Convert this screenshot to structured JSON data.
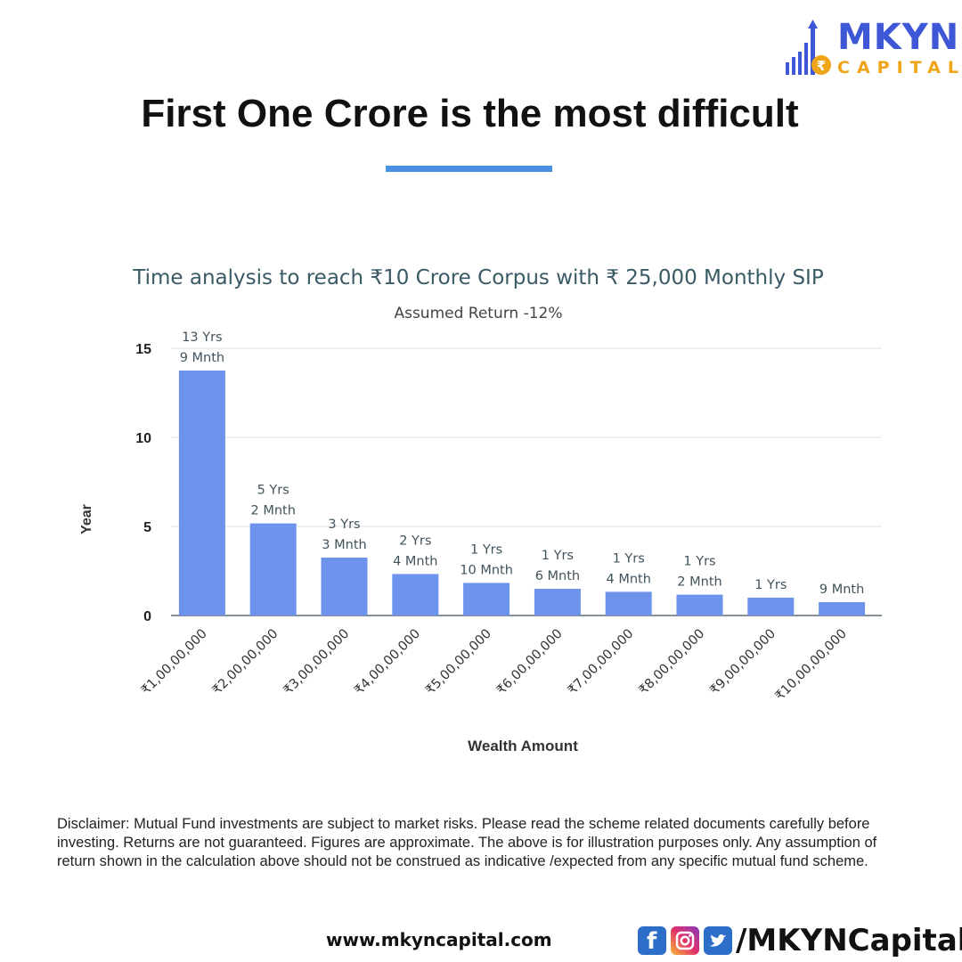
{
  "brand": {
    "name": "MKYN",
    "sub": "CAPITAL",
    "colors": {
      "primary": "#3d57d6",
      "accent": "#f0a418"
    },
    "icon": "rupee-growth-icon"
  },
  "headline": "First One Crore is the most difficult",
  "chart_data": {
    "type": "bar",
    "title": "Time analysis to reach ₹10 Crore Corpus with ₹ 25,000 Monthly SIP",
    "subtitle": "Assumed Return -12%",
    "xlabel": "Wealth Amount",
    "ylabel": "Year",
    "ylim": [
      0,
      15
    ],
    "yticks": [
      "0",
      "5",
      "10",
      "15"
    ],
    "grid": true,
    "bar_color": "#6d93ec",
    "categories": [
      "₹1,00,00,000",
      "₹2,00,00,000",
      "₹3,00,00,000",
      "₹4,00,00,000",
      "₹5,00,00,000",
      "₹6,00,00,000",
      "₹7,00,00,000",
      "₹8,00,00,000",
      "₹9,00,00,000",
      "₹10,00,00,000"
    ],
    "values": [
      13.75,
      5.17,
      3.25,
      2.33,
      1.83,
      1.5,
      1.33,
      1.17,
      1.0,
      0.75
    ],
    "data_labels": [
      [
        "13 Yrs",
        "9 Mnth"
      ],
      [
        "5 Yrs",
        "2 Mnth"
      ],
      [
        "3 Yrs",
        "3 Mnth"
      ],
      [
        "2 Yrs",
        "4 Mnth"
      ],
      [
        "1 Yrs",
        "10 Mnth"
      ],
      [
        "1 Yrs",
        "6 Mnth"
      ],
      [
        "1 Yrs",
        "4 Mnth"
      ],
      [
        "1 Yrs",
        "2 Mnth"
      ],
      [
        "1 Yrs"
      ],
      [
        "9 Mnth"
      ]
    ]
  },
  "disclaimer": "Disclaimer: Mutual Fund investments are subject to market risks. Please read the scheme related documents carefully before investing. Returns are not guaranteed. Figures are approximate. The above is for illustration purposes only. Any assumption of return shown in the calculation above should not be construed as indicative /expected from any specific mutual fund scheme.",
  "footer": {
    "website": "www.mkyncapital.com",
    "social_icons": [
      "facebook-icon",
      "instagram-icon",
      "twitter-icon"
    ],
    "handle": "/MKYNCapital"
  }
}
